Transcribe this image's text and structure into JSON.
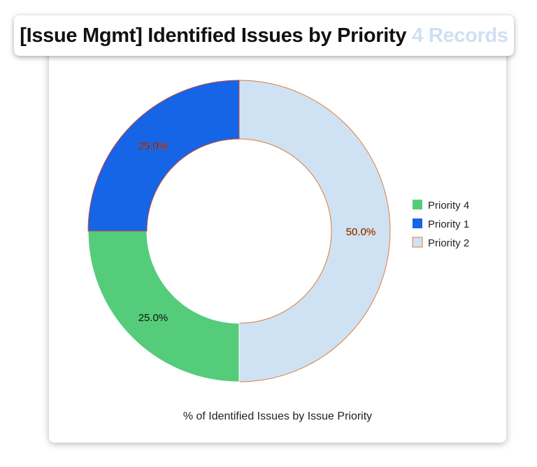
{
  "header": {
    "title": "[Issue Mgmt] Identified Issues by Priority",
    "record_count": "4 Records"
  },
  "chart_data": {
    "type": "pie",
    "donut": true,
    "caption": "% of Identified Issues by Issue Priority",
    "legend_position": "right",
    "slices": [
      {
        "name": "Priority 2",
        "value": 50.0,
        "label": "50.0%",
        "color": "#cfe2f3",
        "border": "#e07b39"
      },
      {
        "name": "Priority 4",
        "value": 25.0,
        "label": "25.0%",
        "color": "#55cc7a",
        "border": "#ffffff"
      },
      {
        "name": "Priority 1",
        "value": 25.0,
        "label": "25.0%",
        "color": "#1565e6",
        "border": "#cc4a3a"
      }
    ],
    "legend": [
      "Priority 4",
      "Priority 1",
      "Priority 2"
    ]
  }
}
